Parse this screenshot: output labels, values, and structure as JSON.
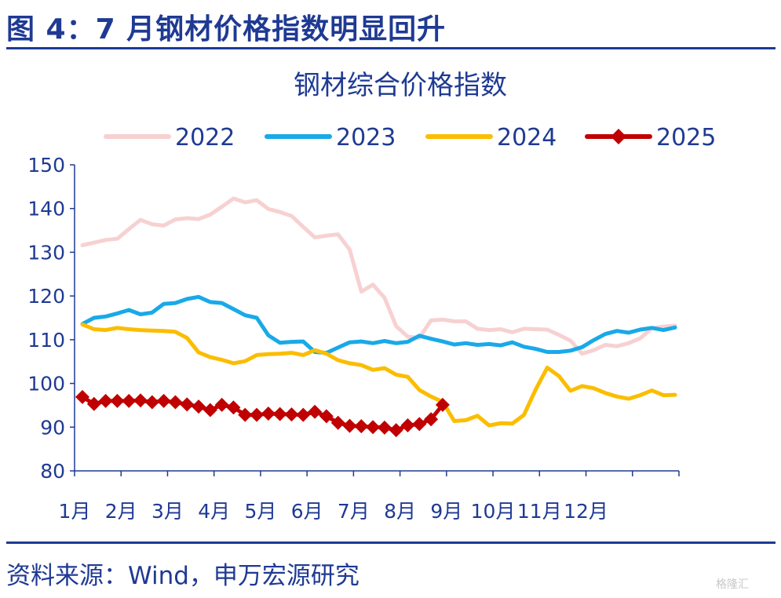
{
  "figure": {
    "title": "图 4：7 月钢材价格指数明显回升",
    "source": "资料来源：Wind，申万宏源研究",
    "watermark": "格隆汇"
  },
  "chart_data": {
    "type": "line",
    "title": "钢材综合价格指数",
    "xlabel": "",
    "ylabel": "",
    "ylim": [
      80,
      150
    ],
    "yticks": [
      80,
      90,
      100,
      110,
      120,
      130,
      140,
      150
    ],
    "x_tick_labels": [
      "1月",
      "2月",
      "3月",
      "4月",
      "5月",
      "6月",
      "7月",
      "8月",
      "9月",
      "10月",
      "11月",
      "12月"
    ],
    "legend_position": "top",
    "grid": false,
    "series": [
      {
        "name": "2022",
        "color": "#f7d1d1",
        "marker": "none",
        "values": [
          131.6,
          132.2,
          132.8,
          133.1,
          135.3,
          137.4,
          136.4,
          136.1,
          137.5,
          137.8,
          137.6,
          138.6,
          140.4,
          142.3,
          141.4,
          141.9,
          139.9,
          139.2,
          138.3,
          135.8,
          133.4,
          133.8,
          134.1,
          130.6,
          121.0,
          122.6,
          119.6,
          113.1,
          110.7,
          110.4,
          114.4,
          114.6,
          114.2,
          114.2,
          112.5,
          112.2,
          112.4,
          111.7,
          112.5,
          112.4,
          112.3,
          111.1,
          109.8,
          106.8,
          107.6,
          108.8,
          108.5,
          109.2,
          110.3,
          112.6,
          113.0,
          113.2
        ]
      },
      {
        "name": "2023",
        "color": "#19a9e8",
        "marker": "none",
        "values": [
          113.6,
          115.0,
          115.3,
          116.0,
          116.8,
          115.8,
          116.2,
          118.2,
          118.4,
          119.3,
          119.8,
          118.6,
          118.4,
          117.0,
          115.6,
          115.0,
          111.0,
          109.3,
          109.5,
          109.6,
          107.2,
          107.0,
          108.2,
          109.4,
          109.6,
          109.2,
          109.7,
          109.2,
          109.5,
          110.9,
          110.2,
          109.6,
          108.9,
          109.2,
          108.8,
          109.0,
          108.7,
          109.4,
          108.4,
          107.9,
          107.2,
          107.2,
          107.5,
          108.3,
          109.9,
          111.3,
          112.0,
          111.6,
          112.3,
          112.7,
          112.2,
          112.8
        ]
      },
      {
        "name": "2024",
        "color": "#fbbd00",
        "marker": "none",
        "values": [
          113.5,
          112.4,
          112.2,
          112.7,
          112.4,
          112.2,
          112.1,
          112.0,
          111.8,
          110.4,
          107.1,
          106.0,
          105.4,
          104.6,
          105.1,
          106.5,
          106.7,
          106.8,
          107.0,
          106.5,
          107.6,
          106.8,
          105.3,
          104.6,
          104.2,
          103.1,
          103.5,
          102.0,
          101.5,
          98.5,
          97.0,
          95.8,
          91.4,
          91.6,
          92.6,
          90.4,
          90.9,
          90.8,
          92.8,
          98.6,
          103.6,
          101.7,
          98.3,
          99.4,
          98.9,
          97.8,
          97.0,
          96.5,
          97.3,
          98.4,
          97.3,
          97.4
        ]
      },
      {
        "name": "2025",
        "color": "#c00000",
        "marker": "diamond",
        "values": [
          96.9,
          95.3,
          96.0,
          96.0,
          96.0,
          96.1,
          95.7,
          96.0,
          95.7,
          95.2,
          94.7,
          93.9,
          95.1,
          94.5,
          92.8,
          92.8,
          93.1,
          93.0,
          92.9,
          92.8,
          93.5,
          92.5,
          91.0,
          90.3,
          90.2,
          90.0,
          89.9,
          89.3,
          90.4,
          90.7,
          91.8,
          95.1
        ]
      }
    ]
  }
}
